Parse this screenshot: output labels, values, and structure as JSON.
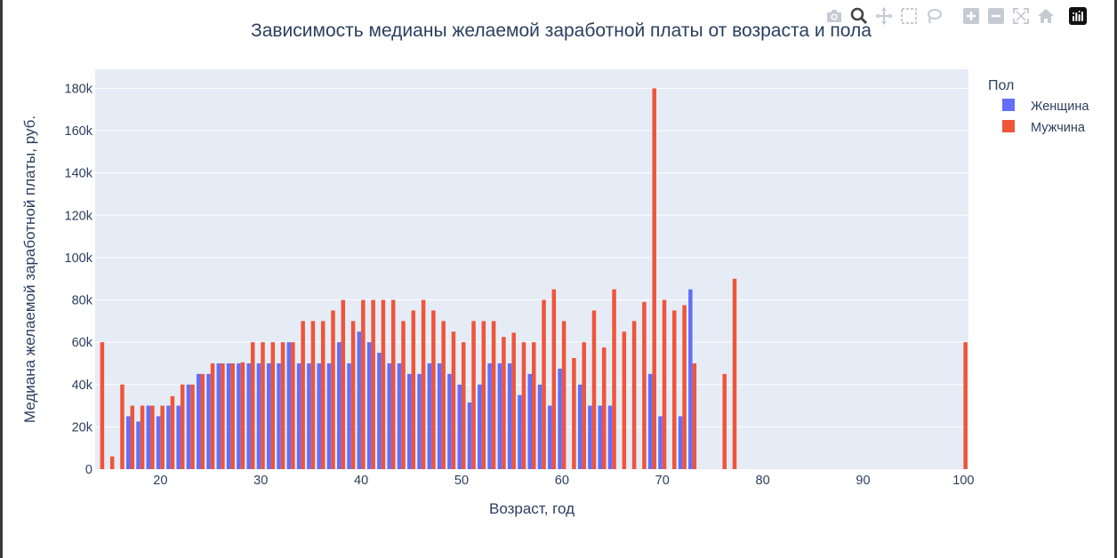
{
  "toolbar": {
    "buttons": [
      {
        "name": "camera-icon",
        "label": "Download plot as a png"
      },
      {
        "name": "zoom-icon",
        "label": "Zoom"
      },
      {
        "name": "pan-icon",
        "label": "Pan"
      },
      {
        "name": "box-select-icon",
        "label": "Box Select"
      },
      {
        "name": "lasso-select-icon",
        "label": "Lasso Select"
      },
      {
        "name": "zoom-in-icon",
        "label": "Zoom in"
      },
      {
        "name": "zoom-out-icon",
        "label": "Zoom out"
      },
      {
        "name": "autoscale-icon",
        "label": "Autoscale"
      },
      {
        "name": "reset-axes-icon",
        "label": "Reset axes"
      },
      {
        "name": "plotly-logo-icon",
        "label": "Produced with Plotly"
      }
    ]
  },
  "colors": {
    "female": "#636efa",
    "male": "#ef553b",
    "plot_bg": "#e5ecf6",
    "grid": "#ffffff",
    "text": "#2a3f5f"
  },
  "chart_data": {
    "type": "bar",
    "barmode": "group",
    "title": "Зависимость медианы желаемой заработной платы от возраста и пола",
    "xlabel": "Возраст, год",
    "ylabel": "Медиана желаемой заработной платы, руб.",
    "xlim": [
      13.5,
      100.5
    ],
    "ylim": [
      0,
      189000
    ],
    "x_ticks": [
      20,
      30,
      40,
      50,
      60,
      70,
      80,
      90,
      100
    ],
    "x_tick_labels": [
      "20",
      "30",
      "40",
      "50",
      "60",
      "70",
      "80",
      "90",
      "100"
    ],
    "y_ticks": [
      0,
      20000,
      40000,
      60000,
      80000,
      100000,
      120000,
      140000,
      160000,
      180000
    ],
    "y_tick_labels": [
      "0",
      "20k",
      "40k",
      "60k",
      "80k",
      "100k",
      "120k",
      "140k",
      "160k",
      "180k"
    ],
    "grid": true,
    "legend_title": "Пол",
    "legend_position": "top-right",
    "series": [
      {
        "name": "Женщина",
        "color": "#636efa",
        "points": [
          [
            17,
            25000
          ],
          [
            18,
            22500
          ],
          [
            19,
            30000
          ],
          [
            20,
            25000
          ],
          [
            21,
            30000
          ],
          [
            22,
            30000
          ],
          [
            23,
            40000
          ],
          [
            24,
            45000
          ],
          [
            25,
            45000
          ],
          [
            26,
            50000
          ],
          [
            27,
            50000
          ],
          [
            28,
            50000
          ],
          [
            29,
            50000
          ],
          [
            30,
            50000
          ],
          [
            31,
            50000
          ],
          [
            32,
            50000
          ],
          [
            33,
            60000
          ],
          [
            34,
            50000
          ],
          [
            35,
            50000
          ],
          [
            36,
            50000
          ],
          [
            37,
            50000
          ],
          [
            38,
            60000
          ],
          [
            39,
            50000
          ],
          [
            40,
            65000
          ],
          [
            41,
            60000
          ],
          [
            42,
            55000
          ],
          [
            43,
            50000
          ],
          [
            44,
            50000
          ],
          [
            45,
            45000
          ],
          [
            46,
            45000
          ],
          [
            47,
            50000
          ],
          [
            48,
            50000
          ],
          [
            49,
            45000
          ],
          [
            50,
            40000
          ],
          [
            51,
            31500
          ],
          [
            52,
            40000
          ],
          [
            53,
            50000
          ],
          [
            54,
            50000
          ],
          [
            55,
            50000
          ],
          [
            56,
            35000
          ],
          [
            57,
            45000
          ],
          [
            58,
            40000
          ],
          [
            59,
            30000
          ],
          [
            60,
            47500
          ],
          [
            62,
            40000
          ],
          [
            63,
            30000
          ],
          [
            64,
            30000
          ],
          [
            65,
            30000
          ],
          [
            69,
            45000
          ],
          [
            70,
            25000
          ],
          [
            72,
            25000
          ],
          [
            73,
            85000
          ]
        ]
      },
      {
        "name": "Мужчина",
        "color": "#ef553b",
        "points": [
          [
            14,
            60000
          ],
          [
            15,
            6000
          ],
          [
            16,
            40000
          ],
          [
            17,
            30000
          ],
          [
            18,
            30000
          ],
          [
            19,
            30000
          ],
          [
            20,
            30000
          ],
          [
            21,
            34500
          ],
          [
            22,
            40000
          ],
          [
            23,
            40000
          ],
          [
            24,
            45000
          ],
          [
            25,
            50000
          ],
          [
            26,
            50000
          ],
          [
            27,
            50000
          ],
          [
            28,
            50500
          ],
          [
            29,
            60000
          ],
          [
            30,
            60000
          ],
          [
            31,
            60000
          ],
          [
            32,
            60000
          ],
          [
            33,
            60000
          ],
          [
            34,
            70000
          ],
          [
            35,
            70000
          ],
          [
            36,
            70000
          ],
          [
            37,
            75000
          ],
          [
            38,
            80000
          ],
          [
            39,
            70000
          ],
          [
            40,
            80000
          ],
          [
            41,
            80000
          ],
          [
            42,
            80000
          ],
          [
            43,
            80000
          ],
          [
            44,
            70000
          ],
          [
            45,
            75000
          ],
          [
            46,
            80000
          ],
          [
            47,
            75000
          ],
          [
            48,
            70000
          ],
          [
            49,
            65000
          ],
          [
            50,
            60000
          ],
          [
            51,
            70000
          ],
          [
            52,
            70000
          ],
          [
            53,
            70000
          ],
          [
            54,
            62500
          ],
          [
            55,
            64500
          ],
          [
            56,
            60000
          ],
          [
            57,
            60000
          ],
          [
            58,
            80000
          ],
          [
            59,
            85000
          ],
          [
            60,
            70000
          ],
          [
            61,
            52500
          ],
          [
            62,
            60000
          ],
          [
            63,
            75000
          ],
          [
            64,
            57500
          ],
          [
            65,
            85000
          ],
          [
            66,
            65000
          ],
          [
            67,
            70000
          ],
          [
            68,
            79000
          ],
          [
            69,
            180000
          ],
          [
            70,
            80000
          ],
          [
            71,
            75000
          ],
          [
            72,
            77500
          ],
          [
            73,
            50000
          ],
          [
            76,
            45000
          ],
          [
            77,
            90000
          ],
          [
            100,
            60000
          ]
        ]
      }
    ]
  }
}
